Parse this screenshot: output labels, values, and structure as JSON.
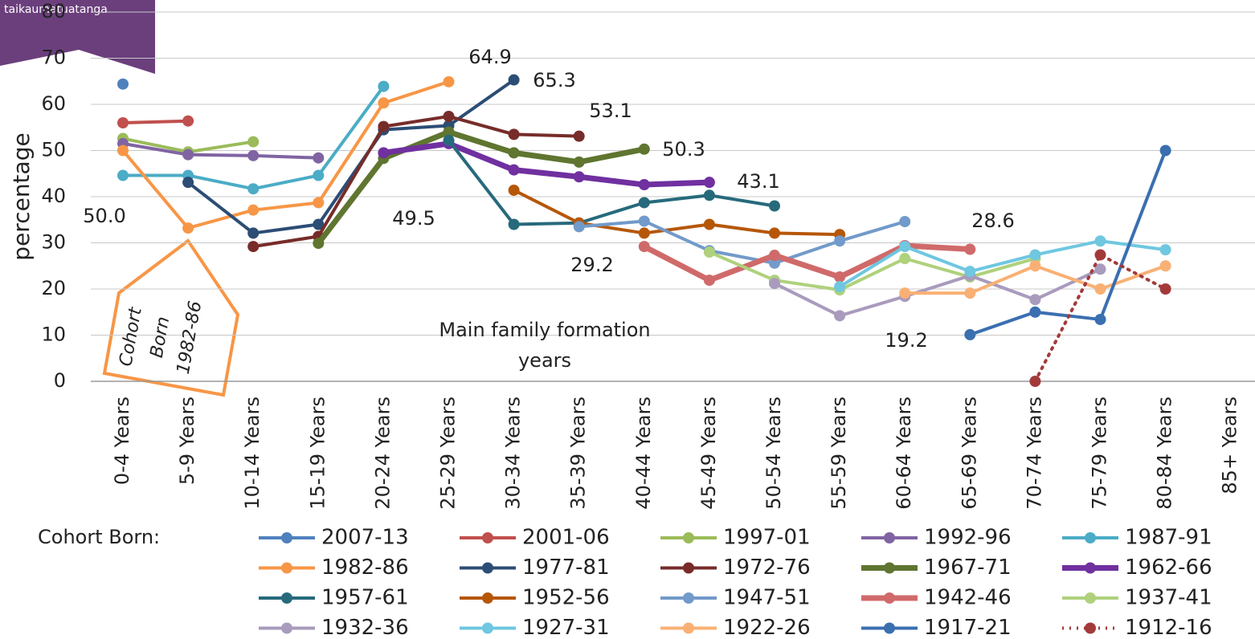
{
  "header": {
    "brand": "taikaumatuatanga"
  },
  "chart_data": {
    "type": "line",
    "y_label": "percentage",
    "categories": [
      "0-4 Years",
      "5-9 Years",
      "10-14 Years",
      "15-19 Years",
      "20-24 Years",
      "25-29 Years",
      "30-34 Years",
      "35-39 Years",
      "40-44 Years",
      "45-49 Years",
      "50-54 Years",
      "55-59 Years",
      "60-64 Years",
      "65-69 Years",
      "70-74 Years",
      "75-79 Years",
      "80-84 Years",
      "85+ Years"
    ],
    "ylim": [
      0,
      80
    ],
    "yticks": [
      0,
      10,
      20,
      30,
      40,
      50,
      60,
      70,
      80
    ],
    "grid": true,
    "legend_title": "Cohort Born:",
    "annotations": [
      "64.9",
      "65.3",
      "53.1",
      "50.3",
      "43.1",
      "28.6",
      "29.2",
      "49.5",
      "19.2",
      "50.0",
      "Main family formation years"
    ],
    "callout": [
      "Cohort",
      "Born",
      "1982-86"
    ],
    "series": [
      {
        "name": "2007-13",
        "color": "#4f81bd",
        "values": [
          64.4,
          null,
          null,
          null,
          null,
          null,
          null,
          null,
          null,
          null,
          null,
          null,
          null,
          null,
          null,
          null,
          null,
          null
        ]
      },
      {
        "name": "2001-06",
        "color": "#c0504d",
        "values": [
          56.0,
          56.4,
          null,
          null,
          null,
          null,
          null,
          null,
          null,
          null,
          null,
          null,
          null,
          null,
          null,
          null,
          null,
          null
        ]
      },
      {
        "name": "1997-01",
        "color": "#9bbb59",
        "values": [
          52.6,
          49.7,
          51.9,
          null,
          null,
          null,
          null,
          null,
          null,
          null,
          null,
          null,
          null,
          null,
          null,
          null,
          null,
          null
        ]
      },
      {
        "name": "1992-96",
        "color": "#8064a2",
        "values": [
          51.5,
          49.1,
          48.9,
          48.4,
          null,
          null,
          null,
          null,
          null,
          null,
          null,
          null,
          null,
          null,
          null,
          null,
          null,
          null
        ]
      },
      {
        "name": "1987-91",
        "color": "#4bacc6",
        "values": [
          44.6,
          44.6,
          41.7,
          44.6,
          63.9,
          null,
          null,
          null,
          null,
          null,
          null,
          null,
          null,
          null,
          null,
          null,
          null,
          null
        ]
      },
      {
        "name": "1982-86",
        "color": "#f79646",
        "values": [
          50.0,
          33.2,
          37.1,
          38.7,
          60.3,
          64.9,
          null,
          null,
          null,
          null,
          null,
          null,
          null,
          null,
          null,
          null,
          null,
          null
        ]
      },
      {
        "name": "1977-81",
        "color": "#2c4d75",
        "values": [
          null,
          43.1,
          32.1,
          34.0,
          54.5,
          55.4,
          65.3,
          null,
          null,
          null,
          null,
          null,
          null,
          null,
          null,
          null,
          null,
          null
        ]
      },
      {
        "name": "1972-76",
        "color": "#772c2a",
        "values": [
          null,
          null,
          29.2,
          31.4,
          55.2,
          57.4,
          53.5,
          53.1,
          null,
          null,
          null,
          null,
          null,
          null,
          null,
          null,
          null,
          null
        ]
      },
      {
        "name": "1967-71",
        "color": "#5f7530",
        "thick": true,
        "values": [
          null,
          null,
          null,
          29.9,
          48.3,
          54.0,
          49.5,
          47.5,
          50.3,
          null,
          null,
          null,
          null,
          null,
          null,
          null,
          null,
          null
        ]
      },
      {
        "name": "1962-66",
        "color": "#7030a0",
        "thick": true,
        "values": [
          null,
          null,
          null,
          null,
          49.5,
          51.5,
          45.8,
          44.3,
          42.6,
          43.1,
          null,
          null,
          null,
          null,
          null,
          null,
          null,
          null
        ]
      },
      {
        "name": "1957-61",
        "color": "#276a7c",
        "values": [
          null,
          null,
          null,
          null,
          null,
          52.2,
          34.0,
          34.3,
          38.7,
          40.3,
          38.0,
          null,
          null,
          null,
          null,
          null,
          null,
          null
        ]
      },
      {
        "name": "1952-56",
        "color": "#b65708",
        "values": [
          null,
          null,
          null,
          null,
          null,
          null,
          41.4,
          34.3,
          32.1,
          34.0,
          32.1,
          31.8,
          null,
          null,
          null,
          null,
          null,
          null
        ]
      },
      {
        "name": "1947-51",
        "color": "#729aca",
        "values": [
          null,
          null,
          null,
          null,
          null,
          null,
          null,
          33.5,
          34.7,
          28.3,
          25.6,
          30.4,
          34.6,
          null,
          null,
          null,
          null,
          null
        ]
      },
      {
        "name": "1942-46",
        "color": "#d06a6a",
        "thick": true,
        "values": [
          null,
          null,
          null,
          null,
          null,
          null,
          null,
          null,
          29.2,
          21.9,
          27.3,
          22.6,
          29.4,
          28.6,
          null,
          null,
          null,
          null
        ]
      },
      {
        "name": "1937-41",
        "color": "#afd17c",
        "values": [
          null,
          null,
          null,
          null,
          null,
          null,
          null,
          null,
          null,
          28.0,
          21.9,
          19.8,
          26.6,
          22.6,
          26.6,
          null,
          null,
          null
        ]
      },
      {
        "name": "1932-36",
        "color": "#a99bbd",
        "values": [
          null,
          null,
          null,
          null,
          null,
          null,
          null,
          null,
          null,
          null,
          21.2,
          14.2,
          18.4,
          22.9,
          17.7,
          24.3,
          null,
          null
        ]
      },
      {
        "name": "1927-31",
        "color": "#6fc7e0",
        "values": [
          null,
          null,
          null,
          null,
          null,
          null,
          null,
          null,
          null,
          null,
          null,
          20.5,
          29.2,
          23.8,
          27.4,
          30.4,
          28.5,
          null
        ]
      },
      {
        "name": "1922-26",
        "color": "#f9b074",
        "values": [
          null,
          null,
          null,
          null,
          null,
          null,
          null,
          null,
          null,
          null,
          null,
          null,
          19.1,
          19.1,
          25.0,
          20.0,
          25.0,
          null
        ]
      },
      {
        "name": "1917-21",
        "color": "#3a6fb0",
        "values": [
          null,
          null,
          null,
          null,
          null,
          null,
          null,
          null,
          null,
          null,
          null,
          null,
          null,
          10.1,
          15.0,
          13.4,
          50.0,
          null
        ]
      },
      {
        "name": "1912-16",
        "color": "#a33a3a",
        "dash": "dotted",
        "values": [
          null,
          null,
          null,
          null,
          null,
          null,
          null,
          null,
          null,
          null,
          null,
          null,
          null,
          null,
          0,
          27.4,
          20.0,
          null
        ]
      }
    ]
  }
}
